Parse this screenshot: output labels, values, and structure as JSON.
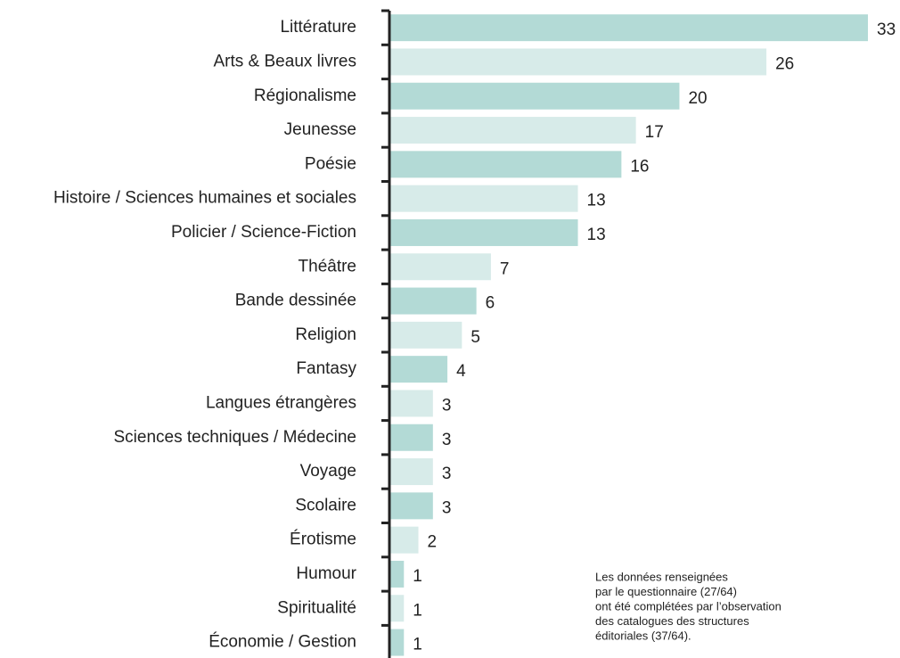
{
  "chart_data": {
    "type": "barh",
    "categories": [
      "Littérature",
      "Arts & Beaux livres",
      "Régionalisme",
      "Jeunesse",
      "Poésie",
      "Histoire / Sciences humaines et sociales",
      "Policier / Science-Fiction",
      "Théâtre",
      "Bande dessinée",
      "Religion",
      "Fantasy",
      "Langues étrangères",
      "Sciences techniques / Médecine",
      "Voyage",
      "Scolaire",
      "Érotisme",
      "Humour",
      "Spiritualité",
      "Économie / Gestion"
    ],
    "values": [
      33,
      26,
      20,
      17,
      16,
      13,
      13,
      7,
      6,
      5,
      4,
      3,
      3,
      3,
      3,
      2,
      1,
      1,
      1
    ],
    "colors": [
      "#b3dad6",
      "#d7ebe9"
    ],
    "note": [
      "Les données renseignées",
      "par le questionnaire (27/64)",
      "ont été complétées par l’observation",
      "des catalogues des structures",
      "éditoriales (37/64)."
    ]
  }
}
